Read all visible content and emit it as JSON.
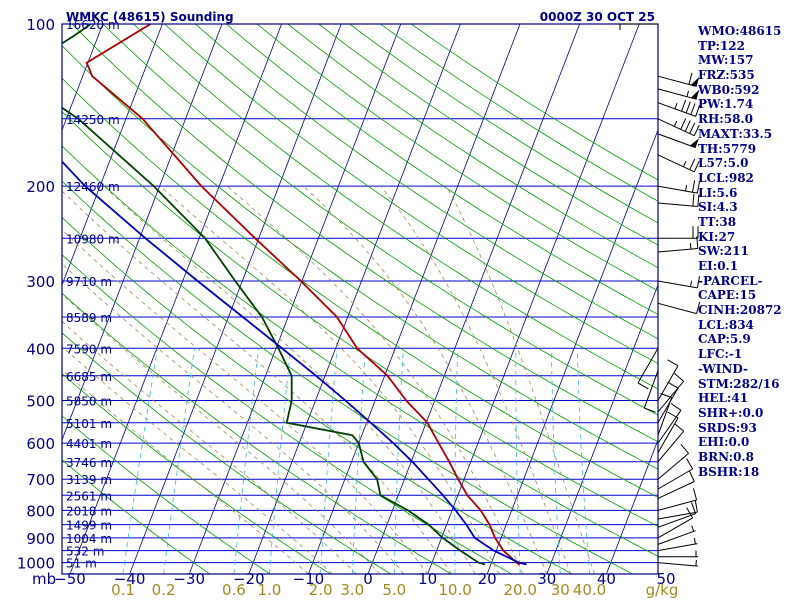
{
  "header": {
    "station": "WMKC (48615) Sounding",
    "time": "0000Z 30 OCT 25"
  },
  "indices": [
    "WMO:48615",
    "TP:122",
    "MW:157",
    "FRZ:535",
    "WB0:592",
    "PW:1.74",
    "RH:58.0",
    "MAXT:33.5",
    "TH:5779",
    "L57:5.0",
    "LCL:982",
    "LI:5.6",
    "SI:4.3",
    "TT:38",
    "KI:27",
    "SW:211",
    "EI:0.1",
    "-PARCEL-",
    "CAPE:15",
    "CINH:20872",
    "LCL:834",
    "CAP:5.9",
    "LFC:-1",
    "-WIND-",
    "STM:282/16",
    "HEL:41",
    "SHR+:0.0",
    "SRDS:93",
    "EHI:0.0",
    "BRN:0.8",
    "BSHR:18"
  ],
  "colors": {
    "axis": "#00008b",
    "isobar": "#0000cd",
    "isotherm": "#00008b",
    "dry_adiabat": "#00a000",
    "moist_adiabat": "#a08a50",
    "mixing_ratio": "#40b8e0",
    "temperature": "#b00000",
    "dewpoint": "#004000",
    "parcel": "#0000c0",
    "wind": "#000000"
  },
  "chart_data": {
    "type": "skew-t",
    "title": "WMKC (48615) Sounding",
    "xlabel": "",
    "ylabel": "mb",
    "pressure_range": [
      100,
      1050
    ],
    "temperature_range": [
      -50,
      50
    ],
    "pressure_ticks": [
      {
        "p": 100,
        "label": "100"
      },
      {
        "p": 200,
        "label": "200"
      },
      {
        "p": 300,
        "label": "300"
      },
      {
        "p": 400,
        "label": "400"
      },
      {
        "p": 500,
        "label": "500"
      },
      {
        "p": 600,
        "label": "600"
      },
      {
        "p": 700,
        "label": "700"
      },
      {
        "p": 800,
        "label": "800"
      },
      {
        "p": 900,
        "label": "900"
      },
      {
        "p": 1000,
        "label": "1000"
      }
    ],
    "axis_unit_label": "mb",
    "temperature_ticks": [
      {
        "t": -50,
        "label": "−50"
      },
      {
        "t": -40,
        "label": "−40"
      },
      {
        "t": -30,
        "label": "−30"
      },
      {
        "t": -20,
        "label": "−20"
      },
      {
        "t": -10,
        "label": "−10"
      },
      {
        "t": 0,
        "label": "0"
      },
      {
        "t": 10,
        "label": "10"
      },
      {
        "t": 20,
        "label": "20"
      },
      {
        "t": 30,
        "label": "30"
      },
      {
        "t": 40,
        "label": "40"
      },
      {
        "t": 50,
        "label": "50"
      }
    ],
    "mixing_ratio_ticks": [
      {
        "w": 0.1,
        "label": "0.1"
      },
      {
        "w": 0.2,
        "label": "0.2"
      },
      {
        "w": 0.6,
        "label": "0.6"
      },
      {
        "w": 1.0,
        "label": "1.0"
      },
      {
        "w": 2.0,
        "label": "2.0"
      },
      {
        "w": 3.0,
        "label": "3.0"
      },
      {
        "w": 5.0,
        "label": "5.0"
      },
      {
        "w": 10.0,
        "label": "10.0"
      },
      {
        "w": 20.0,
        "label": "20.0"
      },
      {
        "w": 30.0,
        "label": "30"
      },
      {
        "w": 40.0,
        "label": "40.0"
      }
    ],
    "mixing_ratio_unit": "g/kg",
    "heights": [
      {
        "p": 100,
        "label": "16620 m"
      },
      {
        "p": 150,
        "label": "14250 m"
      },
      {
        "p": 200,
        "label": "12460 m"
      },
      {
        "p": 250,
        "label": "10980 m"
      },
      {
        "p": 300,
        "label": "9710 m"
      },
      {
        "p": 350,
        "label": "8589 m"
      },
      {
        "p": 400,
        "label": "7590 m"
      },
      {
        "p": 450,
        "label": "6685 m"
      },
      {
        "p": 500,
        "label": "5850 m"
      },
      {
        "p": 550,
        "label": "5101 m"
      },
      {
        "p": 600,
        "label": "4401 m"
      },
      {
        "p": 650,
        "label": "3746 m"
      },
      {
        "p": 700,
        "label": "3139 m"
      },
      {
        "p": 750,
        "label": "2561 m"
      },
      {
        "p": 800,
        "label": "2018 m"
      },
      {
        "p": 850,
        "label": "1499 m"
      },
      {
        "p": 900,
        "label": "1004 m"
      },
      {
        "p": 950,
        "label": "532 m"
      },
      {
        "p": 1000,
        "label": "51 m"
      }
    ],
    "series": [
      {
        "name": "temperature",
        "points": [
          [
            1008,
            24.8
          ],
          [
            1000,
            24.2
          ],
          [
            950,
            21.2
          ],
          [
            900,
            19.0
          ],
          [
            850,
            17.2
          ],
          [
            800,
            14.8
          ],
          [
            750,
            11.6
          ],
          [
            700,
            9.0
          ],
          [
            650,
            6.4
          ],
          [
            600,
            3.4
          ],
          [
            550,
            0.2
          ],
          [
            500,
            -4.8
          ],
          [
            450,
            -9.5
          ],
          [
            400,
            -16.4
          ],
          [
            350,
            -21.8
          ],
          [
            300,
            -30.2
          ],
          [
            250,
            -40.6
          ],
          [
            200,
            -53.0
          ],
          [
            150,
            -67.2
          ],
          [
            125,
            -78.4
          ],
          [
            118,
            -80.2
          ],
          [
            105,
            -74.4
          ],
          [
            100,
            -72.0
          ]
        ]
      },
      {
        "name": "dewpoint",
        "points": [
          [
            1008,
            19.0
          ],
          [
            1000,
            17.8
          ],
          [
            950,
            14.0
          ],
          [
            900,
            10.2
          ],
          [
            850,
            7.0
          ],
          [
            800,
            2.6
          ],
          [
            750,
            -3.0
          ],
          [
            700,
            -4.6
          ],
          [
            650,
            -8.0
          ],
          [
            600,
            -10.0
          ],
          [
            580,
            -11.6
          ],
          [
            550,
            -23.4
          ],
          [
            500,
            -24.0
          ],
          [
            450,
            -25.6
          ],
          [
            400,
            -29.6
          ],
          [
            350,
            -34.4
          ],
          [
            300,
            -41.2
          ],
          [
            250,
            -49.0
          ],
          [
            200,
            -61.0
          ],
          [
            150,
            -78.0
          ],
          [
            130,
            -88.4
          ],
          [
            115,
            -88.2
          ],
          [
            105,
            -84.0
          ],
          [
            100,
            -82.0
          ]
        ]
      },
      {
        "name": "parcel",
        "points": [
          [
            1008,
            26.0
          ],
          [
            1000,
            24.6
          ],
          [
            950,
            19.6
          ],
          [
            900,
            15.6
          ],
          [
            850,
            13.3
          ],
          [
            800,
            10.6
          ],
          [
            750,
            7.5
          ],
          [
            700,
            4.0
          ],
          [
            650,
            0.2
          ],
          [
            600,
            -4.2
          ],
          [
            550,
            -9.3
          ],
          [
            500,
            -15.0
          ],
          [
            450,
            -21.5
          ],
          [
            400,
            -29.0
          ],
          [
            350,
            -37.6
          ],
          [
            300,
            -47.5
          ],
          [
            250,
            -59.0
          ],
          [
            200,
            -72.5
          ],
          [
            150,
            -87.5
          ],
          [
            120,
            -95.0
          ],
          [
            100,
            -99.0
          ]
        ]
      }
    ],
    "wind_barbs": [
      {
        "p": 100,
        "dir": 90,
        "spd": 5
      },
      {
        "p": 125,
        "dir": 255,
        "spd": 60
      },
      {
        "p": 132,
        "dir": 255,
        "spd": 55
      },
      {
        "p": 140,
        "dir": 250,
        "spd": 45
      },
      {
        "p": 150,
        "dir": 245,
        "spd": 45
      },
      {
        "p": 160,
        "dir": 250,
        "spd": 50
      },
      {
        "p": 175,
        "dir": 245,
        "spd": 25
      },
      {
        "p": 200,
        "dir": 260,
        "spd": 25
      },
      {
        "p": 215,
        "dir": 265,
        "spd": 20
      },
      {
        "p": 250,
        "dir": 270,
        "spd": 20
      },
      {
        "p": 265,
        "dir": 275,
        "spd": 15
      },
      {
        "p": 300,
        "dir": 260,
        "spd": 15
      },
      {
        "p": 330,
        "dir": 255,
        "spd": 10
      },
      {
        "p": 400,
        "dir": 150,
        "spd": 10
      },
      {
        "p": 440,
        "dir": 160,
        "spd": 10
      },
      {
        "p": 500,
        "dir": 330,
        "spd": 10
      },
      {
        "p": 525,
        "dir": 320,
        "spd": 10
      },
      {
        "p": 550,
        "dir": 330,
        "spd": 10
      },
      {
        "p": 580,
        "dir": 340,
        "spd": 10
      },
      {
        "p": 600,
        "dir": 325,
        "spd": 10
      },
      {
        "p": 625,
        "dir": 330,
        "spd": 10
      },
      {
        "p": 650,
        "dir": 320,
        "spd": 10
      },
      {
        "p": 700,
        "dir": 310,
        "spd": 10
      },
      {
        "p": 730,
        "dir": 300,
        "spd": 10
      },
      {
        "p": 760,
        "dir": 295,
        "spd": 10
      },
      {
        "p": 800,
        "dir": 285,
        "spd": 10
      },
      {
        "p": 830,
        "dir": 280,
        "spd": 10
      },
      {
        "p": 860,
        "dir": 290,
        "spd": 10
      },
      {
        "p": 900,
        "dir": 300,
        "spd": 10
      },
      {
        "p": 925,
        "dir": 290,
        "spd": 5
      },
      {
        "p": 950,
        "dir": 280,
        "spd": 5
      },
      {
        "p": 975,
        "dir": 270,
        "spd": 5
      },
      {
        "p": 1000,
        "dir": 265,
        "spd": 5
      }
    ]
  }
}
